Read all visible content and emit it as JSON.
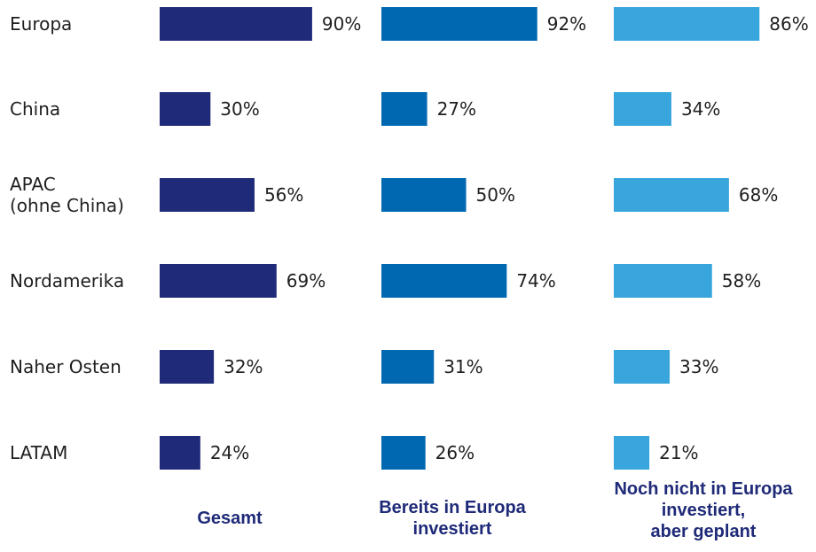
{
  "chart_data": {
    "type": "bar",
    "orientation": "horizontal",
    "categories": [
      "Europa",
      "China",
      "APAC\n(ohne China)",
      "Nordamerika",
      "Naher Osten",
      "LATAM"
    ],
    "series": [
      {
        "name": "Gesamt",
        "color": "#1f2a78",
        "values": [
          90,
          30,
          56,
          69,
          32,
          24
        ],
        "labels": [
          "90%",
          "30%",
          "56%",
          "69%",
          "32%",
          "24%"
        ]
      },
      {
        "name": "Bereits in Europa\ninvestiert",
        "color": "#0068b1",
        "values": [
          92,
          27,
          50,
          74,
          31,
          26
        ],
        "labels": [
          "92%",
          "27%",
          "50%",
          "74%",
          "31%",
          "26%"
        ]
      },
      {
        "name": "Noch nicht in Europa\ninvestiert,\naber geplant",
        "color": "#38a6dc",
        "values": [
          86,
          34,
          68,
          58,
          33,
          21
        ],
        "labels": [
          "86%",
          "34%",
          "68%",
          "58%",
          "33%",
          "21%"
        ]
      }
    ],
    "unit": "%",
    "layout": "small-multiples (one panel per series)",
    "title_color": "#1f2a78",
    "grid": false,
    "legend": "none"
  }
}
